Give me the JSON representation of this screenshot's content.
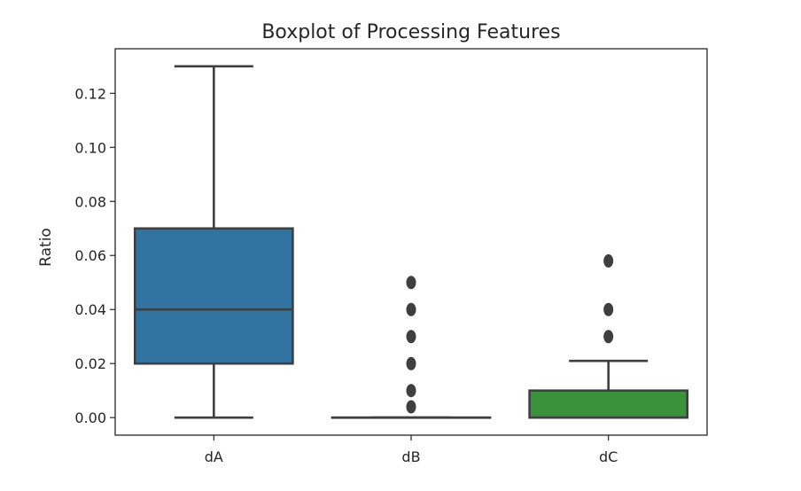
{
  "chart_data": {
    "type": "boxplot",
    "title": "Boxplot of Processing Features",
    "xlabel": "",
    "ylabel": "Ratio",
    "ylim": [
      -0.0065,
      0.1365
    ],
    "yticks": [
      "0.00",
      "0.02",
      "0.04",
      "0.06",
      "0.08",
      "0.10",
      "0.12"
    ],
    "yticks_values": [
      0.0,
      0.02,
      0.04,
      0.06,
      0.08,
      0.1,
      0.12
    ],
    "grid": false,
    "legend": "none",
    "categories": [
      "dA",
      "dB",
      "dC"
    ],
    "boxes": [
      {
        "category": "dA",
        "color": "#3274a1",
        "whislo": 0.0,
        "q1": 0.02,
        "med": 0.04,
        "q3": 0.07,
        "whishi": 0.13,
        "fliers": []
      },
      {
        "category": "dB",
        "color": "#e1812c",
        "whislo": 0.0,
        "q1": 0.0,
        "med": 0.0,
        "q3": 0.0,
        "whishi": 0.0,
        "fliers": [
          0.004,
          0.01,
          0.02,
          0.03,
          0.04,
          0.05
        ]
      },
      {
        "category": "dC",
        "color": "#3a923a",
        "whislo": 0.0,
        "q1": 0.0,
        "med": 0.0,
        "q3": 0.01,
        "whishi": 0.021,
        "fliers": [
          0.03,
          0.04,
          0.058
        ]
      }
    ]
  }
}
